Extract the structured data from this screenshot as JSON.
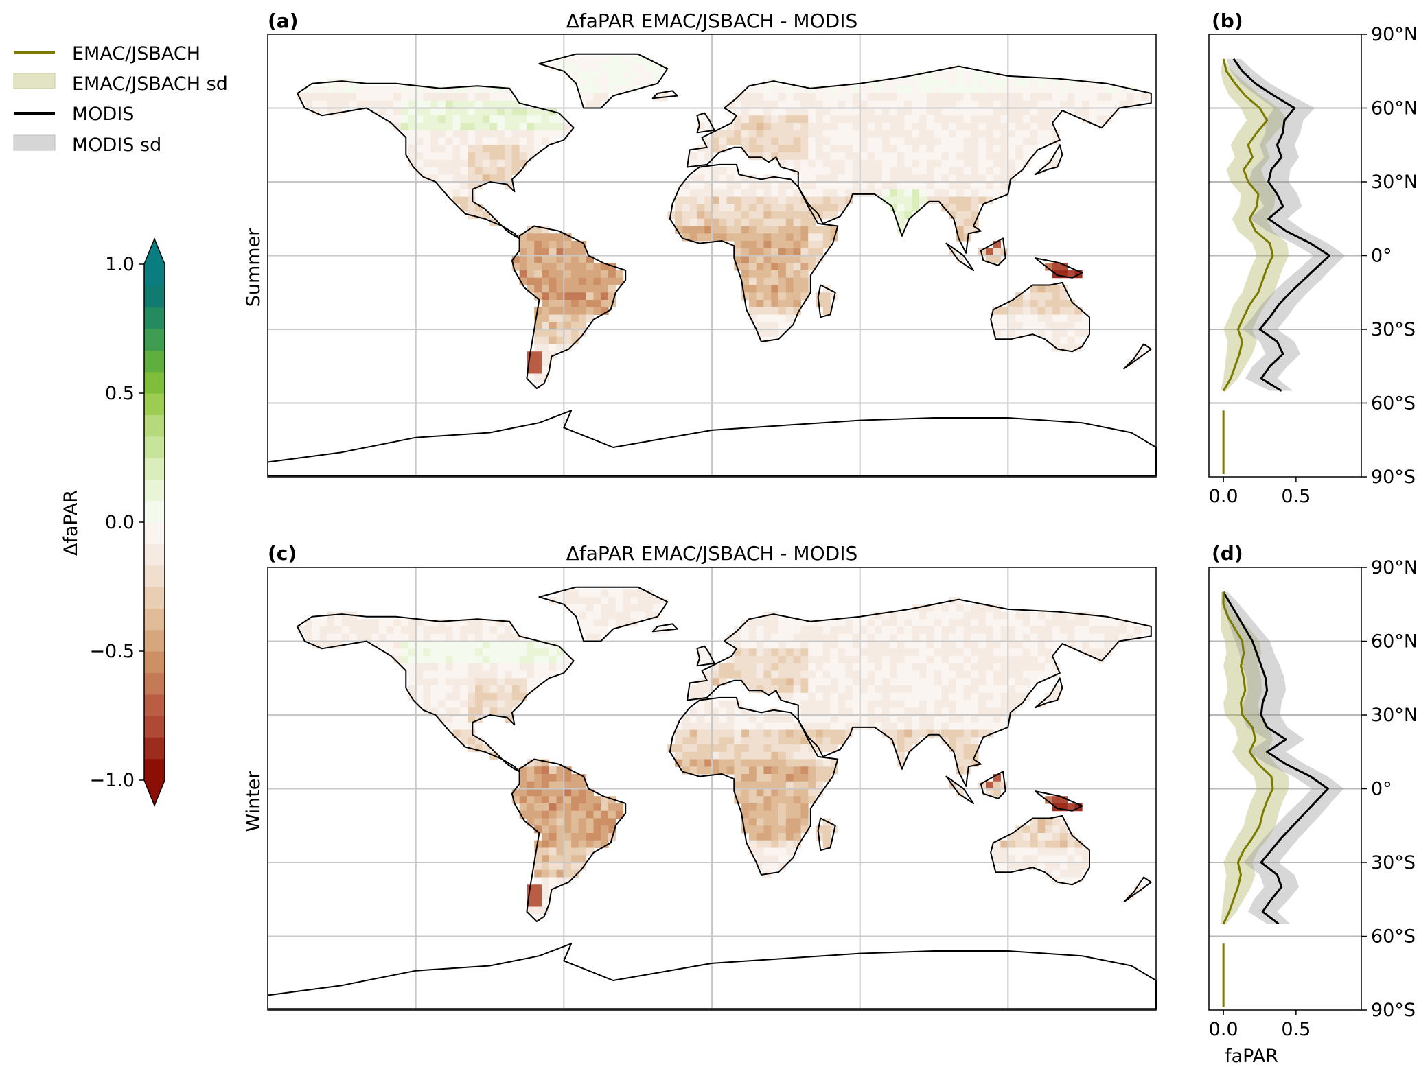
{
  "legend": {
    "items": [
      {
        "label": "EMAC/JSBACH",
        "kind": "line",
        "color": "#7a7a00"
      },
      {
        "label": "EMAC/JSBACH sd",
        "kind": "band",
        "color": "#e2e4c4"
      },
      {
        "label": "MODIS",
        "kind": "line",
        "color": "#000000"
      },
      {
        "label": "MODIS sd",
        "kind": "band",
        "color": "#d6d6d6"
      }
    ]
  },
  "colorbar": {
    "label": "ΔfaPAR",
    "ticks": [
      "1.0",
      "0.5",
      "0.0",
      "−0.5",
      "−1.0"
    ],
    "tick_values": [
      1.0,
      0.5,
      0.0,
      -0.5,
      -1.0
    ],
    "range": [
      -1.0,
      1.0
    ],
    "extend": "both",
    "colors": [
      "#8b0f05",
      "#9c2d1e",
      "#ad4934",
      "#b95e44",
      "#c47a57",
      "#cd9066",
      "#d6a77f",
      "#dfbb98",
      "#e8cfb4",
      "#f0dfcf",
      "#f6ebe3",
      "#fbf5f2",
      "#f5faee",
      "#e9f5d6",
      "#daedbb",
      "#c8e39b",
      "#b5d97b",
      "#9ccc52",
      "#7fbe38",
      "#5fae3e",
      "#3f9d52",
      "#248a60",
      "#117b70",
      "#0a7d80"
    ]
  },
  "row_labels": [
    "Summer",
    "Winter"
  ],
  "maps": [
    {
      "label": "(a)",
      "title": "ΔfaPAR EMAC/JSBACH - MODIS"
    },
    {
      "label": "(c)",
      "title": "ΔfaPAR EMAC/JSBACH - MODIS"
    }
  ],
  "profiles": [
    {
      "label": "(b)"
    },
    {
      "label": "(d)",
      "xlabel": "faPAR"
    }
  ],
  "profile_axes": {
    "lat_ticks": [
      "90°N",
      "60°N",
      "30°N",
      "0°",
      "30°S",
      "60°S",
      "90°S"
    ],
    "lat_values": [
      90,
      60,
      30,
      0,
      -30,
      -60,
      -90
    ],
    "x_ticks": [
      "0.0",
      "0.5"
    ],
    "x_values": [
      0.0,
      0.5
    ],
    "xlim": [
      -0.1,
      0.95
    ]
  },
  "chart_data": [
    {
      "type": "line",
      "panel": "(b) Summer",
      "y_axis": "latitude (degrees)",
      "x_axis": "faPAR",
      "lat": [
        80,
        75,
        70,
        65,
        60,
        55,
        50,
        45,
        40,
        35,
        30,
        25,
        20,
        15,
        10,
        5,
        0,
        -5,
        -10,
        -15,
        -20,
        -25,
        -30,
        -35,
        -40,
        -45,
        -50,
        -55
      ],
      "series": [
        {
          "name": "MODIS",
          "values": [
            0.07,
            0.13,
            0.22,
            0.35,
            0.49,
            0.42,
            0.41,
            0.37,
            0.4,
            0.33,
            0.31,
            0.37,
            0.41,
            0.31,
            0.43,
            0.6,
            0.73,
            0.64,
            0.55,
            0.46,
            0.38,
            0.32,
            0.25,
            0.37,
            0.41,
            0.32,
            0.26,
            0.4
          ],
          "sd": [
            0.05,
            0.08,
            0.1,
            0.12,
            0.14,
            0.13,
            0.12,
            0.12,
            0.12,
            0.13,
            0.14,
            0.14,
            0.13,
            0.13,
            0.13,
            0.12,
            0.11,
            0.11,
            0.12,
            0.12,
            0.12,
            0.12,
            0.12,
            0.12,
            0.12,
            0.12,
            0.11,
            0.08
          ]
        },
        {
          "name": "EMAC/JSBACH",
          "values": [
            0.0,
            0.02,
            0.08,
            0.15,
            0.25,
            0.3,
            0.23,
            0.17,
            0.2,
            0.14,
            0.17,
            0.24,
            0.23,
            0.18,
            0.22,
            0.32,
            0.34,
            0.3,
            0.27,
            0.24,
            0.18,
            0.14,
            0.1,
            0.13,
            0.11,
            0.08,
            0.05,
            0.0
          ],
          "sd": [
            0.0,
            0.04,
            0.08,
            0.11,
            0.13,
            0.14,
            0.13,
            0.12,
            0.12,
            0.12,
            0.12,
            0.12,
            0.12,
            0.12,
            0.12,
            0.12,
            0.11,
            0.11,
            0.11,
            0.11,
            0.11,
            0.1,
            0.1,
            0.1,
            0.09,
            0.07,
            0.05,
            0.02
          ]
        }
      ],
      "antarctic_segment": {
        "series": "EMAC/JSBACH",
        "lat": [
          -63,
          -90
        ],
        "value": 0.0
      }
    },
    {
      "type": "line",
      "panel": "(d) Winter",
      "y_axis": "latitude (degrees)",
      "x_axis": "faPAR",
      "lat": [
        80,
        75,
        70,
        65,
        60,
        55,
        50,
        45,
        40,
        35,
        30,
        25,
        20,
        15,
        10,
        5,
        0,
        -5,
        -10,
        -15,
        -20,
        -25,
        -30,
        -35,
        -40,
        -45,
        -50,
        -55
      ],
      "series": [
        {
          "name": "MODIS",
          "values": [
            0.0,
            0.05,
            0.1,
            0.15,
            0.2,
            0.23,
            0.26,
            0.29,
            0.3,
            0.27,
            0.26,
            0.3,
            0.43,
            0.3,
            0.43,
            0.6,
            0.72,
            0.64,
            0.56,
            0.48,
            0.4,
            0.33,
            0.26,
            0.37,
            0.4,
            0.33,
            0.27,
            0.38
          ],
          "sd": [
            0.03,
            0.06,
            0.08,
            0.1,
            0.12,
            0.12,
            0.13,
            0.13,
            0.13,
            0.13,
            0.13,
            0.14,
            0.13,
            0.13,
            0.13,
            0.12,
            0.11,
            0.11,
            0.12,
            0.12,
            0.12,
            0.12,
            0.12,
            0.12,
            0.12,
            0.12,
            0.1,
            0.08
          ]
        },
        {
          "name": "EMAC/JSBACH",
          "values": [
            0.0,
            0.0,
            0.03,
            0.08,
            0.13,
            0.14,
            0.12,
            0.14,
            0.15,
            0.12,
            0.13,
            0.2,
            0.22,
            0.18,
            0.24,
            0.33,
            0.34,
            0.3,
            0.27,
            0.25,
            0.2,
            0.14,
            0.1,
            0.12,
            0.1,
            0.07,
            0.04,
            0.0
          ],
          "sd": [
            0.0,
            0.03,
            0.06,
            0.1,
            0.12,
            0.12,
            0.12,
            0.12,
            0.12,
            0.12,
            0.12,
            0.12,
            0.12,
            0.12,
            0.12,
            0.12,
            0.11,
            0.11,
            0.11,
            0.11,
            0.11,
            0.1,
            0.1,
            0.1,
            0.09,
            0.07,
            0.05,
            0.02
          ]
        }
      ],
      "antarctic_segment": {
        "series": "EMAC/JSBACH",
        "lat": [
          -63,
          -90
        ],
        "value": 0.0
      }
    }
  ]
}
